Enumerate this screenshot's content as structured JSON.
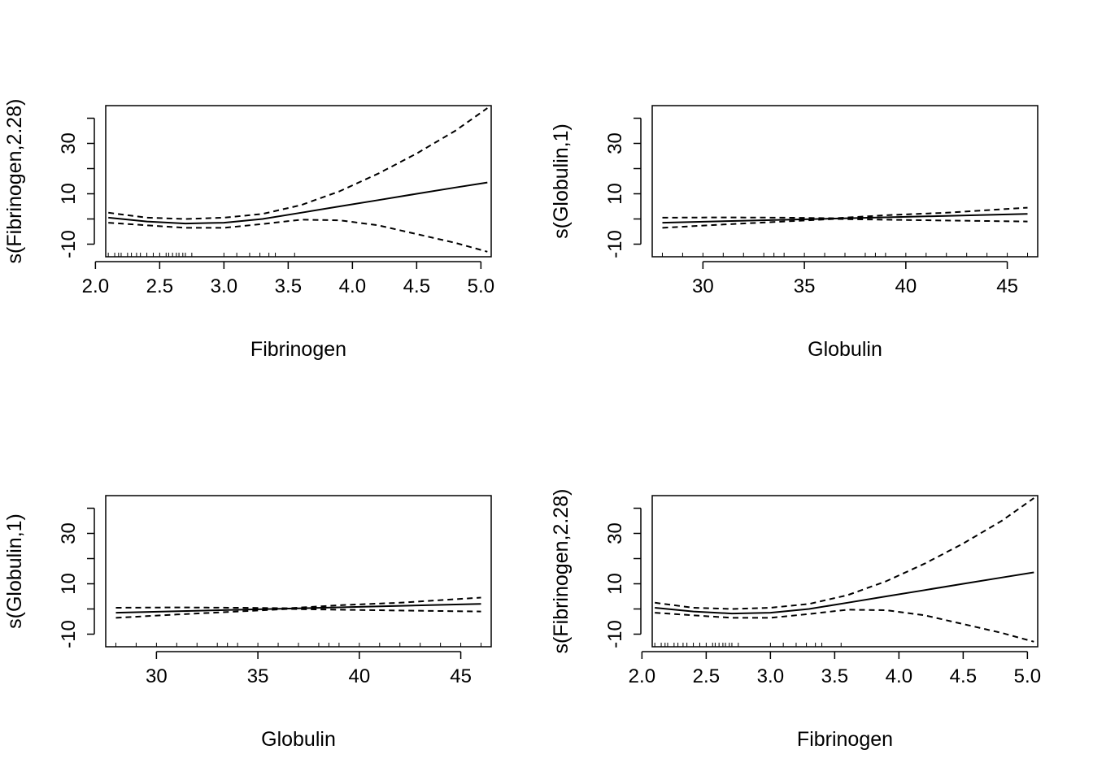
{
  "chart_data": [
    {
      "type": "line",
      "panel": "top-left",
      "title": "",
      "xlabel": "Fibrinogen",
      "ylabel": "s(Fibrinogen,2.28)",
      "xlim": [
        2.08,
        5.08
      ],
      "ylim": [
        -15,
        45
      ],
      "x_ticks": [
        2.0,
        2.5,
        3.0,
        3.5,
        4.0,
        4.5,
        5.0
      ],
      "x_tick_labels": [
        "2.0",
        "2.5",
        "3.0",
        "3.5",
        "4.0",
        "4.5",
        "5.0"
      ],
      "y_ticks": [
        -10,
        0,
        10,
        20,
        30,
        40
      ],
      "y_tick_labels": [
        "-10",
        "",
        "10",
        "",
        "30",
        ""
      ],
      "series": [
        {
          "style": "solid",
          "x": [
            2.1,
            2.4,
            2.7,
            3.0,
            3.3,
            3.6,
            3.9,
            4.2,
            4.5,
            4.8,
            5.05
          ],
          "y": [
            0.5,
            -1.0,
            -1.8,
            -1.5,
            0.0,
            2.5,
            5.0,
            7.5,
            10.0,
            12.5,
            14.5
          ]
        },
        {
          "style": "dashed",
          "x": [
            2.1,
            2.4,
            2.7,
            3.0,
            3.3,
            3.6,
            3.9,
            4.2,
            4.5,
            4.8,
            5.05
          ],
          "y": [
            2.5,
            0.5,
            0.0,
            0.5,
            2.0,
            5.5,
            11.0,
            18.0,
            26.0,
            35.0,
            44.0
          ]
        },
        {
          "style": "dashed",
          "x": [
            2.1,
            2.4,
            2.7,
            3.0,
            3.3,
            3.6,
            3.9,
            4.2,
            4.5,
            4.8,
            5.05
          ],
          "y": [
            -1.5,
            -2.5,
            -3.5,
            -3.5,
            -2.0,
            -0.3,
            -0.5,
            -2.5,
            -6.0,
            -9.5,
            -13.0
          ]
        }
      ],
      "rug": [
        2.1,
        2.15,
        2.18,
        2.2,
        2.25,
        2.28,
        2.32,
        2.35,
        2.4,
        2.45,
        2.5,
        2.55,
        2.57,
        2.6,
        2.63,
        2.65,
        2.68,
        2.7,
        2.75,
        3.0,
        3.1,
        3.2,
        3.28,
        3.35,
        3.4,
        3.55
      ]
    },
    {
      "type": "line",
      "panel": "top-right",
      "title": "",
      "xlabel": "Globulin",
      "ylabel": "s(Globulin,1)",
      "xlim": [
        27.5,
        46.5
      ],
      "ylim": [
        -15,
        45
      ],
      "x_ticks": [
        30,
        35,
        40,
        45
      ],
      "x_tick_labels": [
        "30",
        "35",
        "40",
        "45"
      ],
      "y_ticks": [
        -10,
        0,
        10,
        20,
        30,
        40
      ],
      "y_tick_labels": [
        "-10",
        "",
        "10",
        "",
        "30",
        ""
      ],
      "series": [
        {
          "style": "solid",
          "x": [
            28,
            46
          ],
          "y": [
            -1.5,
            2.0
          ]
        },
        {
          "style": "dashed",
          "x": [
            28,
            31,
            34,
            36.5,
            39,
            42,
            46
          ],
          "y": [
            0.5,
            0.6,
            0.5,
            0.3,
            1.5,
            2.5,
            4.5
          ]
        },
        {
          "style": "dashed",
          "x": [
            28,
            31,
            34,
            36.5,
            39,
            42,
            46
          ],
          "y": [
            -3.5,
            -2.2,
            -1.0,
            0.0,
            -0.3,
            -0.6,
            -1.0
          ]
        }
      ],
      "rug": [
        28,
        29,
        30,
        31,
        32,
        33,
        33.5,
        34,
        35,
        36,
        37,
        38,
        38.5,
        39,
        40,
        41,
        42,
        43,
        44,
        45,
        46
      ]
    },
    {
      "type": "line",
      "panel": "bottom-left",
      "title": "",
      "xlabel": "Globulin",
      "ylabel": "s(Globulin,1)",
      "xlim": [
        27.5,
        46.5
      ],
      "ylim": [
        -15,
        45
      ],
      "x_ticks": [
        30,
        35,
        40,
        45
      ],
      "x_tick_labels": [
        "30",
        "35",
        "40",
        "45"
      ],
      "y_ticks": [
        -10,
        0,
        10,
        20,
        30,
        40
      ],
      "y_tick_labels": [
        "-10",
        "",
        "10",
        "",
        "30",
        ""
      ],
      "series": [
        {
          "style": "solid",
          "x": [
            28,
            46
          ],
          "y": [
            -1.5,
            2.0
          ]
        },
        {
          "style": "dashed",
          "x": [
            28,
            31,
            34,
            36.5,
            39,
            42,
            46
          ],
          "y": [
            0.5,
            0.6,
            0.5,
            0.3,
            1.5,
            2.5,
            4.5
          ]
        },
        {
          "style": "dashed",
          "x": [
            28,
            31,
            34,
            36.5,
            39,
            42,
            46
          ],
          "y": [
            -3.5,
            -2.2,
            -1.0,
            0.0,
            -0.3,
            -0.6,
            -1.0
          ]
        }
      ],
      "rug": [
        28,
        29,
        30,
        31,
        32,
        33,
        33.5,
        34,
        35,
        36,
        37,
        38,
        38.5,
        39,
        40,
        41,
        42,
        43,
        44,
        45,
        46
      ]
    },
    {
      "type": "line",
      "panel": "bottom-right",
      "title": "",
      "xlabel": "Fibrinogen",
      "ylabel": "s(Fibrinogen,2.28)",
      "xlim": [
        2.08,
        5.08
      ],
      "ylim": [
        -15,
        45
      ],
      "x_ticks": [
        2.0,
        2.5,
        3.0,
        3.5,
        4.0,
        4.5,
        5.0
      ],
      "x_tick_labels": [
        "2.0",
        "2.5",
        "3.0",
        "3.5",
        "4.0",
        "4.5",
        "5.0"
      ],
      "y_ticks": [
        -10,
        0,
        10,
        20,
        30,
        40
      ],
      "y_tick_labels": [
        "-10",
        "",
        "10",
        "",
        "30",
        ""
      ],
      "series": [
        {
          "style": "solid",
          "x": [
            2.1,
            2.4,
            2.7,
            3.0,
            3.3,
            3.6,
            3.9,
            4.2,
            4.5,
            4.8,
            5.05
          ],
          "y": [
            0.5,
            -1.0,
            -1.8,
            -1.5,
            0.0,
            2.5,
            5.0,
            7.5,
            10.0,
            12.5,
            14.5
          ]
        },
        {
          "style": "dashed",
          "x": [
            2.1,
            2.4,
            2.7,
            3.0,
            3.3,
            3.6,
            3.9,
            4.2,
            4.5,
            4.8,
            5.05
          ],
          "y": [
            2.5,
            0.5,
            0.0,
            0.5,
            2.0,
            5.5,
            11.0,
            18.0,
            26.0,
            35.0,
            44.0
          ]
        },
        {
          "style": "dashed",
          "x": [
            2.1,
            2.4,
            2.7,
            3.0,
            3.3,
            3.6,
            3.9,
            4.2,
            4.5,
            4.8,
            5.05
          ],
          "y": [
            -1.5,
            -2.5,
            -3.5,
            -3.5,
            -2.0,
            -0.3,
            -0.5,
            -2.5,
            -6.0,
            -9.5,
            -13.0
          ]
        }
      ],
      "rug": [
        2.1,
        2.15,
        2.18,
        2.2,
        2.25,
        2.28,
        2.32,
        2.35,
        2.4,
        2.45,
        2.5,
        2.55,
        2.57,
        2.6,
        2.63,
        2.65,
        2.68,
        2.7,
        2.75,
        3.0,
        3.1,
        3.2,
        3.28,
        3.35,
        3.4,
        3.55
      ]
    }
  ]
}
